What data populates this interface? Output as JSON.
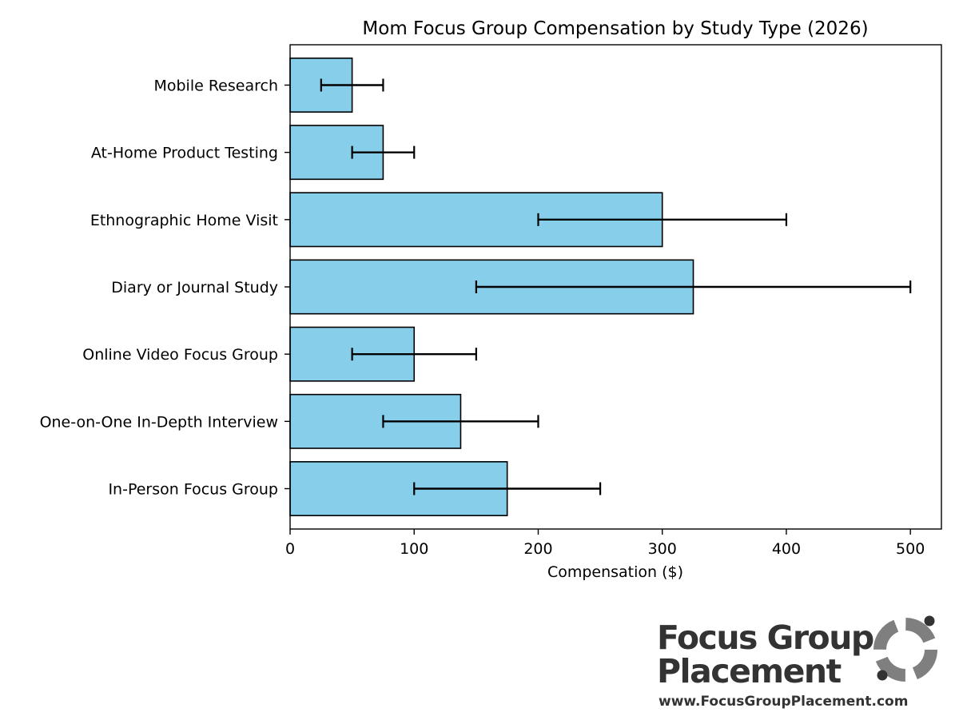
{
  "chart_data": {
    "type": "bar",
    "orientation": "horizontal",
    "title": "Mom Focus Group Compensation by Study Type (2026)",
    "xlabel": "Compensation ($)",
    "ylabel": "",
    "xlim": [
      0,
      525
    ],
    "xticks": [
      0,
      100,
      200,
      300,
      400,
      500
    ],
    "grid": false,
    "categories": [
      "In-Person Focus Group",
      "One-on-One In-Depth Interview",
      "Online Video Focus Group",
      "Diary or Journal Study",
      "Ethnographic Home Visit",
      "At-Home Product Testing",
      "Mobile Research"
    ],
    "values": [
      175,
      137.5,
      100,
      325,
      300,
      75,
      50
    ],
    "error_low": [
      100,
      75,
      50,
      150,
      200,
      50,
      25
    ],
    "error_high": [
      250,
      200,
      150,
      500,
      400,
      100,
      75
    ],
    "bar_color": "#87ceeb",
    "edge_color": "#000000"
  },
  "logo": {
    "line1": "Focus Group",
    "line2": "Placement",
    "url": "www.FocusGroupPlacement.com",
    "text_color": "#333333",
    "mark_color": "#7f7f7f",
    "dot_color": "#333333"
  }
}
